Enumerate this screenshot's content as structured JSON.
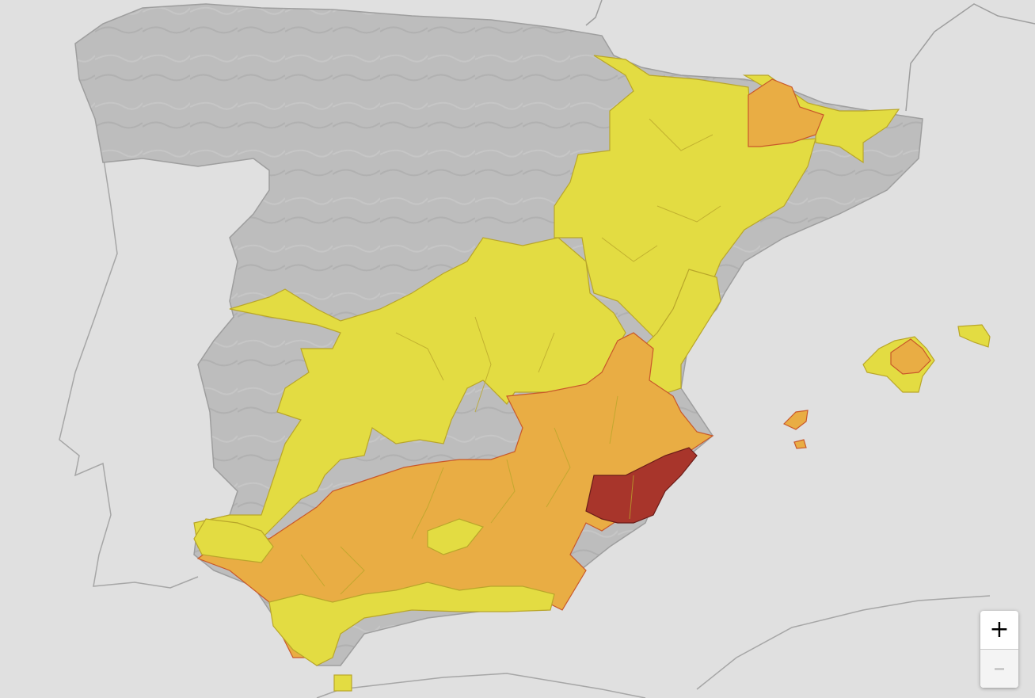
{
  "map": {
    "colors": {
      "sea": "#e0e0e0",
      "land": "#bdbdbd",
      "foreign_outline": "#a6a6a6",
      "no_warning": "#e3dc42",
      "yellow": "#e3dc42",
      "orange": "#e9ad44",
      "red": "#a8352b",
      "border_yellow": "#b9a62a",
      "border_orange": "#c9582a",
      "border_red": "#6a1c18"
    },
    "warning_levels": [
      "yellow",
      "orange",
      "red"
    ]
  },
  "zoom_control": {
    "zoom_in_label": "+",
    "zoom_out_label": "–",
    "zoom_out_disabled": true
  }
}
